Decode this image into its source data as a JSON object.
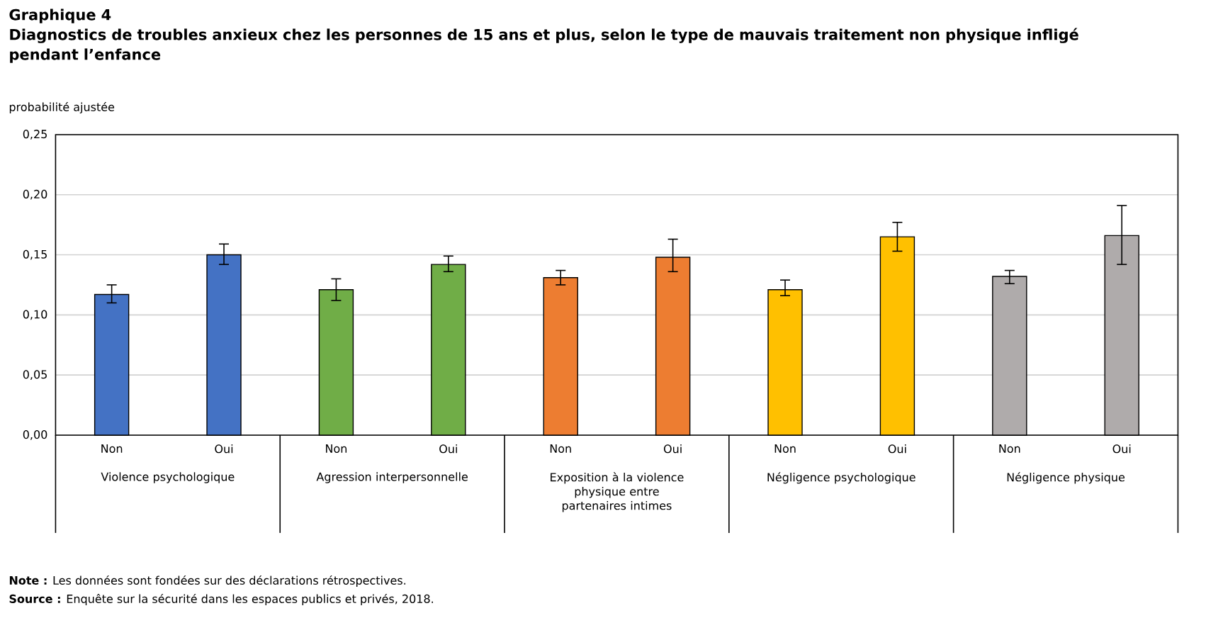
{
  "chart_data": {
    "type": "bar",
    "title": "Graphique 4",
    "subtitle": "Diagnostics de troubles anxieux chez les personnes de 15 ans et plus, selon le type de mauvais traitement non physique infligé  pendant l’enfance",
    "ylabel": "probabilité ajustée",
    "categories": [
      "Non",
      "Oui",
      "Non",
      "Oui",
      "Non",
      "Oui",
      "Non",
      "Oui",
      "Non",
      "Oui"
    ],
    "values": [
      0.117,
      0.15,
      0.121,
      0.142,
      0.131,
      0.148,
      0.121,
      0.165,
      0.132,
      0.166
    ],
    "errors": [
      [
        0.11,
        0.125
      ],
      [
        0.142,
        0.159
      ],
      [
        0.112,
        0.13
      ],
      [
        0.136,
        0.149
      ],
      [
        0.125,
        0.137
      ],
      [
        0.136,
        0.163
      ],
      [
        0.116,
        0.129
      ],
      [
        0.153,
        0.177
      ],
      [
        0.126,
        0.137
      ],
      [
        0.142,
        0.191
      ]
    ],
    "colors": [
      "#4472c4",
      "#4472c4",
      "#70ad47",
      "#70ad47",
      "#ed7d31",
      "#ed7d31",
      "#ffc000",
      "#ffc000",
      "#afabab",
      "#afabab"
    ],
    "ylim": [
      0,
      0.25
    ],
    "yticks": [
      {
        "value": 0,
        "label": "0,00"
      },
      {
        "value": 0.05,
        "label": "0,05"
      },
      {
        "value": 0.1,
        "label": "0,10"
      },
      {
        "value": 0.15,
        "label": "0,15"
      },
      {
        "value": 0.2,
        "label": "0,20"
      },
      {
        "value": 0.25,
        "label": "0,25"
      }
    ],
    "grid": "y",
    "annotations": [
      "Violence psychologique",
      "Agression interpersonnelle",
      "Exposition à la violence physique entre partenaires intimes",
      "Négligence psychologique",
      "Négligence physique",
      "**Note :** Les données sont fondées sur des déclarations rétrospectives.",
      "**Source :** Enquête sur la sécurité dans les espaces publics et privés, 2018."
    ]
  }
}
